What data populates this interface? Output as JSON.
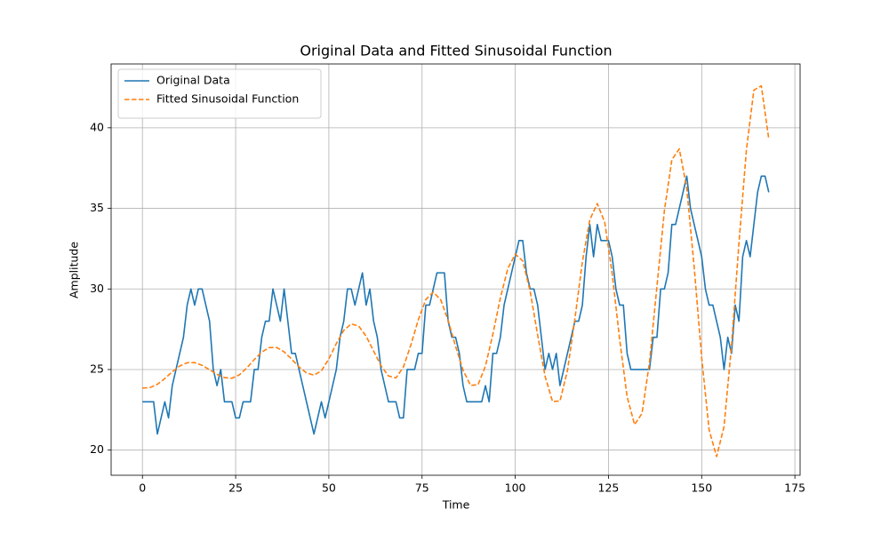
{
  "chart_data": {
    "type": "line",
    "title": "Original Data and Fitted Sinusoidal Function",
    "xlabel": "Time",
    "ylabel": "Amplitude",
    "xlim": [
      -8.4,
      176.4
    ],
    "ylim": [
      18.44,
      43.96
    ],
    "xticks": [
      0,
      25,
      50,
      75,
      100,
      125,
      150,
      175
    ],
    "yticks": [
      20,
      25,
      30,
      35,
      40
    ],
    "grid": true,
    "legend": "upper left",
    "series": [
      {
        "name": "Original Data",
        "color": "#1f77b4",
        "linestyle": "solid",
        "x": [
          0,
          1,
          2,
          3,
          4,
          5,
          6,
          7,
          8,
          9,
          10,
          11,
          12,
          13,
          14,
          15,
          16,
          17,
          18,
          19,
          20,
          21,
          22,
          23,
          24,
          25,
          26,
          27,
          28,
          29,
          30,
          31,
          32,
          33,
          34,
          35,
          36,
          37,
          38,
          39,
          40,
          41,
          42,
          43,
          44,
          45,
          46,
          47,
          48,
          49,
          50,
          51,
          52,
          53,
          54,
          55,
          56,
          57,
          58,
          59,
          60,
          61,
          62,
          63,
          64,
          65,
          66,
          67,
          68,
          69,
          70,
          71,
          72,
          73,
          74,
          75,
          76,
          77,
          78,
          79,
          80,
          81,
          82,
          83,
          84,
          85,
          86,
          87,
          88,
          89,
          90,
          91,
          92,
          93,
          94,
          95,
          96,
          97,
          98,
          99,
          100,
          101,
          102,
          103,
          104,
          105,
          106,
          107,
          108,
          109,
          110,
          111,
          112,
          113,
          114,
          115,
          116,
          117,
          118,
          119,
          120,
          121,
          122,
          123,
          124,
          125,
          126,
          127,
          128,
          129,
          130,
          131,
          132,
          133,
          134,
          135,
          136,
          137,
          138,
          139,
          140,
          141,
          142,
          143,
          144,
          145,
          146,
          147,
          148,
          149,
          150,
          151,
          152,
          153,
          154,
          155,
          156,
          157,
          158,
          159,
          160,
          161,
          162,
          163,
          164,
          165,
          166,
          167,
          168
        ],
        "values": [
          23,
          23,
          23,
          23,
          21,
          22,
          23,
          22,
          24,
          25,
          26,
          27,
          29,
          30,
          29,
          30,
          30,
          29,
          28,
          25,
          24,
          25,
          23,
          23,
          23,
          22,
          22,
          23,
          23,
          23,
          25,
          25,
          27,
          28,
          28,
          30,
          29,
          28,
          30,
          28,
          26,
          26,
          25,
          24,
          23,
          22,
          21,
          22,
          23,
          22,
          23,
          24,
          25,
          27,
          28,
          30,
          30,
          29,
          30,
          31,
          29,
          30,
          28,
          27,
          25,
          24,
          23,
          23,
          23,
          22,
          22,
          25,
          25,
          25,
          26,
          26,
          29,
          29,
          30,
          31,
          31,
          31,
          28,
          27,
          27,
          26,
          24,
          23,
          23,
          23,
          23,
          23,
          24,
          23,
          26,
          26,
          27,
          29,
          30,
          31,
          32,
          33,
          33,
          31,
          30,
          30,
          29,
          27,
          25,
          26,
          25,
          26,
          24,
          25,
          26,
          27,
          28,
          28,
          29,
          32,
          34,
          32,
          34,
          33,
          33,
          33,
          32,
          30,
          29,
          29,
          26,
          25,
          25,
          25,
          25,
          25,
          25,
          27,
          27,
          30,
          30,
          31,
          34,
          34,
          35,
          36,
          37,
          35,
          34,
          33,
          32,
          30,
          29,
          29,
          28,
          27,
          25,
          27,
          26,
          29,
          28,
          32,
          33,
          32,
          34,
          36,
          37,
          37,
          36
        ]
      },
      {
        "name": "Fitted Sinusoidal Function",
        "color": "#ff7f0e",
        "linestyle": "dashed",
        "x": [
          0,
          2,
          4,
          6,
          8,
          10,
          12,
          14,
          16,
          18,
          20,
          22,
          24,
          26,
          28,
          30,
          32,
          34,
          36,
          38,
          40,
          42,
          44,
          46,
          48,
          50,
          52,
          54,
          56,
          58,
          60,
          62,
          64,
          66,
          68,
          70,
          72,
          74,
          76,
          78,
          80,
          82,
          84,
          86,
          88,
          90,
          92,
          94,
          96,
          98,
          100,
          102,
          104,
          106,
          108,
          110,
          112,
          114,
          116,
          118,
          120,
          122,
          124,
          126,
          128,
          130,
          132,
          134,
          136,
          138,
          140,
          142,
          144,
          146,
          148,
          150,
          152,
          154,
          156,
          158,
          160,
          162,
          164,
          166,
          168
        ],
        "values": [
          23.85,
          23.88,
          24.08,
          24.44,
          24.86,
          25.22,
          25.42,
          25.43,
          25.26,
          24.99,
          24.7,
          24.5,
          24.46,
          24.67,
          25.1,
          25.62,
          26.08,
          26.36,
          26.37,
          26.1,
          25.65,
          25.16,
          24.79,
          24.65,
          24.92,
          25.66,
          26.61,
          27.43,
          27.83,
          27.7,
          27.07,
          26.15,
          25.23,
          24.6,
          24.48,
          25.16,
          26.53,
          28.09,
          29.34,
          29.8,
          29.33,
          28.05,
          26.43,
          24.96,
          24.02,
          24.05,
          25.21,
          27.2,
          29.44,
          31.26,
          32.16,
          31.74,
          29.85,
          27.15,
          24.58,
          23.01,
          23.05,
          24.94,
          28.16,
          31.68,
          34.3,
          35.3,
          34.13,
          30.94,
          26.87,
          23.32,
          21.58,
          22.28,
          25.44,
          30.15,
          34.86,
          38.02,
          38.69,
          36.25,
          31.33,
          25.74,
          21.25,
          19.6,
          21.46,
          26.49,
          32.85,
          38.62,
          42.34,
          42.6,
          39.3
        ]
      }
    ]
  }
}
